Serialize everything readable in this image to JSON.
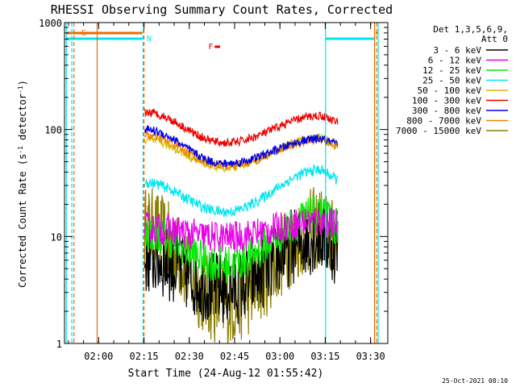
{
  "chart_data": {
    "type": "line",
    "title": "RHESSI Observing Summary Count Rates, Corrected",
    "xlabel": "Start Time (24-Aug-12 01:55:42)",
    "ylabel_main": "Corrected Count Rate (s",
    "ylabel_sup1": "-1",
    "ylabel_mid": " detector",
    "ylabel_sup2": "-1",
    "ylabel_end": ")",
    "yscale": "log",
    "ylim": [
      1,
      1000
    ],
    "xlim_minutes": [
      -7,
      100
    ],
    "x_ticks": [
      {
        "label": "02:00",
        "t": 4.3
      },
      {
        "label": "02:15",
        "t": 19.3
      },
      {
        "label": "02:30",
        "t": 34.3
      },
      {
        "label": "02:45",
        "t": 49.3
      },
      {
        "label": "03:00",
        "t": 64.3
      },
      {
        "label": "03:15",
        "t": 79.3
      },
      {
        "label": "03:30",
        "t": 94.3
      }
    ],
    "y_ticks": [
      {
        "label": "1",
        "v": 1
      },
      {
        "label": "10",
        "v": 10
      },
      {
        "label": "100",
        "v": 100
      },
      {
        "label": "1000",
        "v": 1000
      }
    ],
    "legend_header": [
      "Det 1,3,5,6,9,",
      "Att 0"
    ],
    "series": [
      {
        "name": "3 - 6 keV",
        "color": "#000000",
        "start": 6.3,
        "peak": 10,
        "trough": 3.2,
        "noise": 0.35
      },
      {
        "name": "6 - 12 keV",
        "color": "#e600e6",
        "start": 12,
        "peak": 14,
        "trough": 9.8,
        "noise": 0.15
      },
      {
        "name": "12 - 25 keV",
        "color": "#00ee00",
        "start": 11,
        "peak": 16,
        "trough": 5.5,
        "noise": 0.18
      },
      {
        "name": "25 - 50 keV",
        "color": "#00e5ee",
        "start": 32,
        "peak": 42,
        "trough": 17,
        "noise": 0.05
      },
      {
        "name": "50 - 100 keV",
        "color": "#d9b800",
        "start": 80,
        "peak": 85,
        "trough": 44,
        "noise": 0.04
      },
      {
        "name": "100 - 300 keV",
        "color": "#ee0000",
        "start": 145,
        "peak": 135,
        "trough": 75,
        "noise": 0.04
      },
      {
        "name": "300 - 800 keV",
        "color": "#0000ee",
        "start": 100,
        "peak": 82,
        "trough": 48,
        "noise": 0.04
      },
      {
        "name": "800 - 7000 keV",
        "color": "#ee8400",
        "start": 88,
        "peak": 80,
        "trough": 46,
        "noise": 0.04
      },
      {
        "name": "7000 - 15000 keV",
        "color": "#8b7d00",
        "start": 12,
        "peak": 12,
        "trough": 2.3,
        "noise": 0.4
      }
    ],
    "flags": [
      {
        "label": "S",
        "color": "#ee6a00"
      },
      {
        "label": "N",
        "color": "#00e5ee"
      },
      {
        "label": "F",
        "color": "#ee0000"
      }
    ],
    "footer_date": "25-Oct-2021 08:10"
  }
}
